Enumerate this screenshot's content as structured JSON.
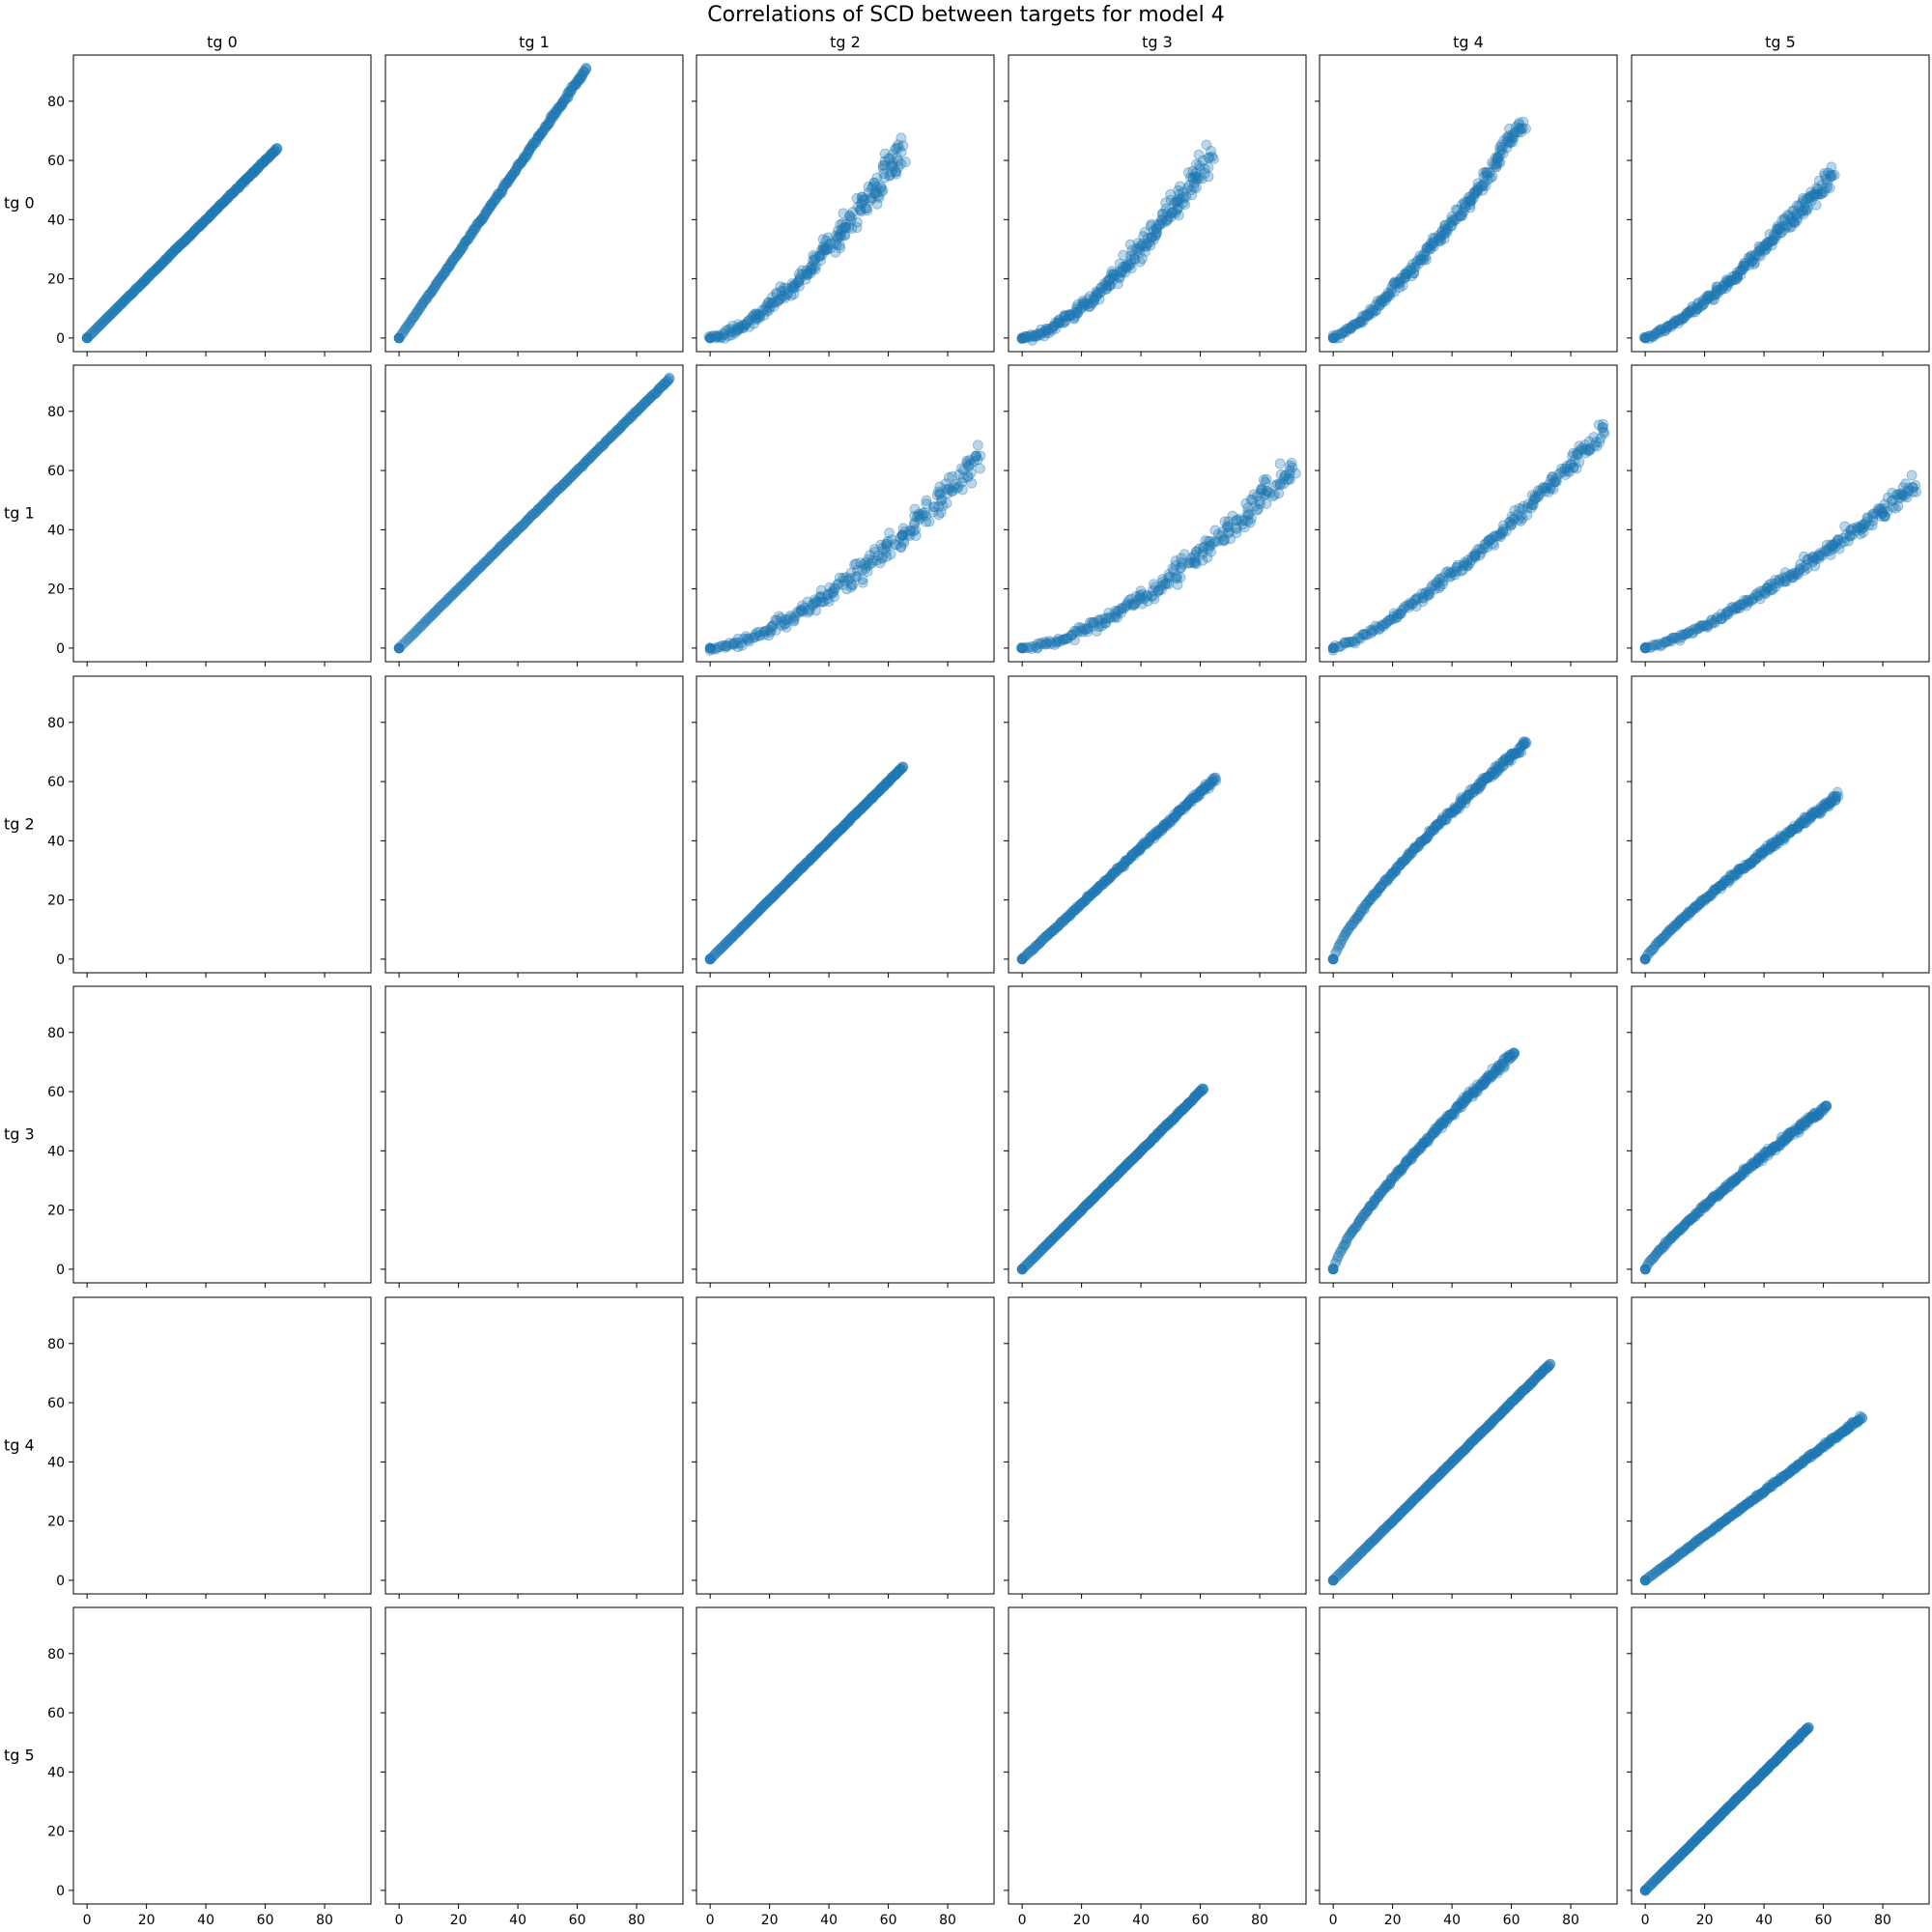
{
  "chart_data": {
    "type": "scatter",
    "title": "Correlations of SCD between targets for model 4",
    "targets": [
      "tg 0",
      "tg 1",
      "tg 2",
      "tg 3",
      "tg 4",
      "tg 5"
    ],
    "xticks": [
      0,
      20,
      40,
      60,
      80
    ],
    "yticks": [
      0,
      20,
      40,
      60,
      80
    ],
    "xlim": [
      -4.6,
      95.6
    ],
    "ylim": [
      -4.6,
      95.6
    ],
    "sharex": true,
    "sharey": true,
    "marker_color": "#1f77b4",
    "marker_alpha": 0.3,
    "panels": [
      {
        "row": 0,
        "col": 0,
        "shape": "linear",
        "spread": 0.15,
        "end": [
          64,
          64
        ]
      },
      {
        "row": 0,
        "col": 1,
        "shape": "linear",
        "spread": 0.3,
        "end": [
          63,
          91
        ]
      },
      {
        "row": 0,
        "col": 2,
        "shape": "convex",
        "spread": 2.2,
        "end": [
          65,
          65
        ]
      },
      {
        "row": 0,
        "col": 3,
        "shape": "convex",
        "spread": 2.0,
        "end": [
          63,
          61
        ]
      },
      {
        "row": 0,
        "col": 4,
        "shape": "convex-mild",
        "spread": 1.4,
        "end": [
          64,
          73
        ]
      },
      {
        "row": 0,
        "col": 5,
        "shape": "convex-mild",
        "spread": 1.3,
        "end": [
          63,
          55
        ]
      },
      {
        "row": 1,
        "col": 1,
        "shape": "linear",
        "spread": 0.15,
        "end": [
          91,
          91
        ]
      },
      {
        "row": 1,
        "col": 2,
        "shape": "convex",
        "spread": 2.2,
        "end": [
          91,
          65
        ]
      },
      {
        "row": 1,
        "col": 3,
        "shape": "convex",
        "spread": 2.0,
        "end": [
          91,
          61
        ]
      },
      {
        "row": 1,
        "col": 4,
        "shape": "convex-mild",
        "spread": 1.4,
        "end": [
          91,
          73
        ]
      },
      {
        "row": 1,
        "col": 5,
        "shape": "convex-mild",
        "spread": 1.3,
        "end": [
          91,
          55
        ]
      },
      {
        "row": 2,
        "col": 2,
        "shape": "linear",
        "spread": 0.15,
        "end": [
          65,
          65
        ]
      },
      {
        "row": 2,
        "col": 3,
        "shape": "linear",
        "spread": 0.4,
        "end": [
          65,
          61
        ]
      },
      {
        "row": 2,
        "col": 4,
        "shape": "concave",
        "spread": 0.6,
        "end": [
          65,
          73
        ]
      },
      {
        "row": 2,
        "col": 5,
        "shape": "concave-mild",
        "spread": 0.6,
        "end": [
          65,
          55
        ]
      },
      {
        "row": 3,
        "col": 3,
        "shape": "linear",
        "spread": 0.15,
        "end": [
          61,
          61
        ]
      },
      {
        "row": 3,
        "col": 4,
        "shape": "concave",
        "spread": 0.6,
        "end": [
          61,
          73
        ]
      },
      {
        "row": 3,
        "col": 5,
        "shape": "concave-mild",
        "spread": 0.6,
        "end": [
          61,
          55
        ]
      },
      {
        "row": 4,
        "col": 4,
        "shape": "linear",
        "spread": 0.15,
        "end": [
          73,
          73
        ]
      },
      {
        "row": 4,
        "col": 5,
        "shape": "linear",
        "spread": 0.3,
        "end": [
          73,
          55
        ]
      },
      {
        "row": 5,
        "col": 5,
        "shape": "linear",
        "spread": 0.15,
        "end": [
          55,
          55
        ]
      }
    ]
  }
}
